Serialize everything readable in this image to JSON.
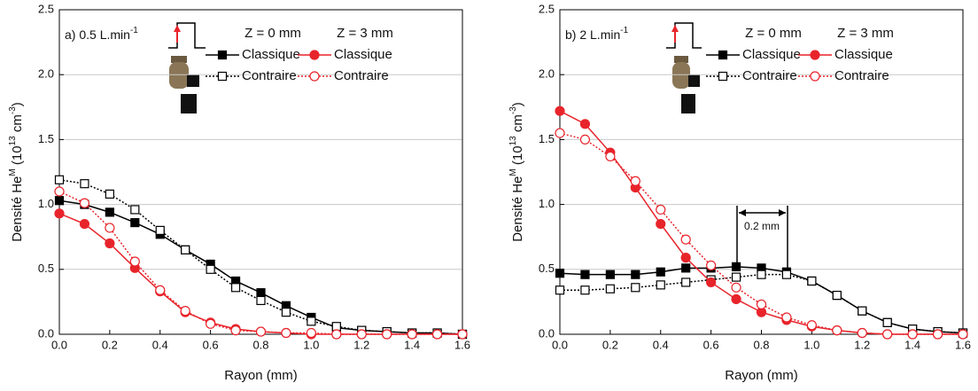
{
  "chart_data": [
    {
      "type": "line",
      "title": [
        {
          "text": "a) 0.5 L.min"
        },
        {
          "text": "-1",
          "sup": true
        }
      ],
      "xlabel": "Rayon (mm)",
      "ylabel": [
        {
          "text": "Densité He"
        },
        {
          "text": "M",
          "sup": true
        },
        {
          "text": " (10"
        },
        {
          "text": "13",
          "sup": true
        },
        {
          "text": " cm"
        },
        {
          "text": "-3",
          "sup": true
        },
        {
          "text": ")"
        }
      ],
      "x": [
        0,
        0.1,
        0.2,
        0.3,
        0.4,
        0.5,
        0.6,
        0.7,
        0.8,
        0.9,
        1.0,
        1.1,
        1.2,
        1.3,
        1.4,
        1.5,
        1.6
      ],
      "xlim": [
        0,
        1.6
      ],
      "xticks": [
        {
          "value": 0,
          "label": "0.0"
        },
        {
          "value": 0.2,
          "label": "0.2"
        },
        {
          "value": 0.4,
          "label": "0.4"
        },
        {
          "value": 0.6,
          "label": "0.6"
        },
        {
          "value": 0.8,
          "label": "0.8"
        },
        {
          "value": 1.0,
          "label": "1.0"
        },
        {
          "value": 1.2,
          "label": "1.2"
        },
        {
          "value": 1.4,
          "label": "1.4"
        },
        {
          "value": 1.6,
          "label": "1.6"
        }
      ],
      "ylim": [
        0,
        2.5
      ],
      "yticks": [
        {
          "value": 0,
          "label": "0.0"
        },
        {
          "value": 0.5,
          "label": "0.5"
        },
        {
          "value": 1.0,
          "label": "1.0"
        },
        {
          "value": 1.5,
          "label": "1.5"
        },
        {
          "value": 2.0,
          "label": "2.0"
        },
        {
          "value": 2.5,
          "label": "2.5"
        }
      ],
      "grid": true,
      "groups": [
        {
          "name": "Z = 0 mm",
          "series": [
            {
              "name": "Classique",
              "color": "#000000",
              "marker": "square",
              "filled": true,
              "dash": "solid",
              "values": [
                1.03,
                1.0,
                0.94,
                0.86,
                0.77,
                0.65,
                0.54,
                0.41,
                0.32,
                0.22,
                0.13,
                0.05,
                0.03,
                0.02,
                0.01,
                0.01,
                0.0
              ]
            },
            {
              "name": "Contraire",
              "color": "#000000",
              "marker": "square",
              "filled": false,
              "dash": "dotted",
              "values": [
                1.19,
                1.16,
                1.08,
                0.96,
                0.8,
                0.65,
                0.5,
                0.36,
                0.26,
                0.17,
                0.1,
                0.06,
                0.03,
                0.02,
                0.01,
                0.01,
                0.0
              ]
            }
          ]
        },
        {
          "name": "Z = 3 mm",
          "series": [
            {
              "name": "Classique",
              "color": "#e8242b",
              "marker": "circle",
              "filled": true,
              "dash": "solid",
              "values": [
                0.93,
                0.85,
                0.7,
                0.51,
                0.33,
                0.17,
                0.09,
                0.04,
                0.02,
                0.01,
                0.0,
                0.0,
                0.0,
                0.0,
                0.0,
                0.0,
                0.0
              ]
            },
            {
              "name": "Contraire",
              "color": "#e8242b",
              "marker": "circle",
              "filled": false,
              "dash": "dotted",
              "values": [
                1.1,
                1.01,
                0.82,
                0.56,
                0.34,
                0.18,
                0.08,
                0.03,
                0.02,
                0.01,
                0.01,
                0.0,
                0.0,
                0.0,
                0.0,
                0.0,
                0.0
              ]
            }
          ]
        }
      ]
    },
    {
      "type": "line",
      "title": [
        {
          "text": "b) 2 L.min"
        },
        {
          "text": "-1",
          "sup": true
        }
      ],
      "xlabel": "Rayon (mm)",
      "ylabel": [
        {
          "text": "Densité He"
        },
        {
          "text": "M",
          "sup": true
        },
        {
          "text": " (10"
        },
        {
          "text": "13",
          "sup": true
        },
        {
          "text": " cm"
        },
        {
          "text": "-3",
          "sup": true
        },
        {
          "text": ")"
        }
      ],
      "annotation": "0.2 mm",
      "x": [
        0,
        0.1,
        0.2,
        0.3,
        0.4,
        0.5,
        0.6,
        0.7,
        0.8,
        0.9,
        1.0,
        1.1,
        1.2,
        1.3,
        1.4,
        1.5,
        1.6
      ],
      "xlim": [
        0,
        1.6
      ],
      "xticks": [
        {
          "value": 0,
          "label": "0.0"
        },
        {
          "value": 0.2,
          "label": "0.2"
        },
        {
          "value": 0.4,
          "label": "0.4"
        },
        {
          "value": 0.6,
          "label": "0.6"
        },
        {
          "value": 0.8,
          "label": "0.8"
        },
        {
          "value": 1.0,
          "label": "1.0"
        },
        {
          "value": 1.2,
          "label": "1.2"
        },
        {
          "value": 1.4,
          "label": "1.4"
        },
        {
          "value": 1.6,
          "label": "1.6"
        }
      ],
      "ylim": [
        0,
        2.5
      ],
      "yticks": [
        {
          "value": 0,
          "label": "0.0"
        },
        {
          "value": 0.5,
          "label": "0.5"
        },
        {
          "value": 1.0,
          "label": "1.0"
        },
        {
          "value": 1.5,
          "label": "1.5"
        },
        {
          "value": 2.0,
          "label": "2.0"
        },
        {
          "value": 2.5,
          "label": "2.5"
        }
      ],
      "grid": true,
      "groups": [
        {
          "name": "Z = 0 mm",
          "series": [
            {
              "name": "Classique",
              "color": "#000000",
              "marker": "square",
              "filled": true,
              "dash": "solid",
              "values": [
                0.47,
                0.46,
                0.46,
                0.46,
                0.48,
                0.51,
                0.51,
                0.52,
                0.51,
                0.48,
                0.41,
                0.3,
                0.18,
                0.09,
                0.04,
                0.02,
                0.01
              ]
            },
            {
              "name": "Contraire",
              "color": "#000000",
              "marker": "square",
              "filled": false,
              "dash": "dotted",
              "values": [
                0.34,
                0.34,
                0.35,
                0.36,
                0.38,
                0.4,
                0.42,
                0.44,
                0.46,
                0.46,
                0.41,
                0.3,
                0.18,
                0.09,
                0.04,
                0.02,
                0.01
              ]
            }
          ]
        },
        {
          "name": "Z = 3 mm",
          "series": [
            {
              "name": "Classique",
              "color": "#e8242b",
              "marker": "circle",
              "filled": true,
              "dash": "solid",
              "values": [
                1.72,
                1.62,
                1.4,
                1.13,
                0.85,
                0.59,
                0.4,
                0.27,
                0.17,
                0.11,
                0.06,
                0.03,
                0.01,
                0.0,
                0.0,
                0.0,
                0.0
              ]
            },
            {
              "name": "Contraire",
              "color": "#e8242b",
              "marker": "circle",
              "filled": false,
              "dash": "dotted",
              "values": [
                1.55,
                1.5,
                1.37,
                1.18,
                0.96,
                0.73,
                0.53,
                0.36,
                0.23,
                0.13,
                0.07,
                0.03,
                0.01,
                0.0,
                0.0,
                0.0,
                0.0
              ]
            }
          ]
        }
      ]
    }
  ]
}
